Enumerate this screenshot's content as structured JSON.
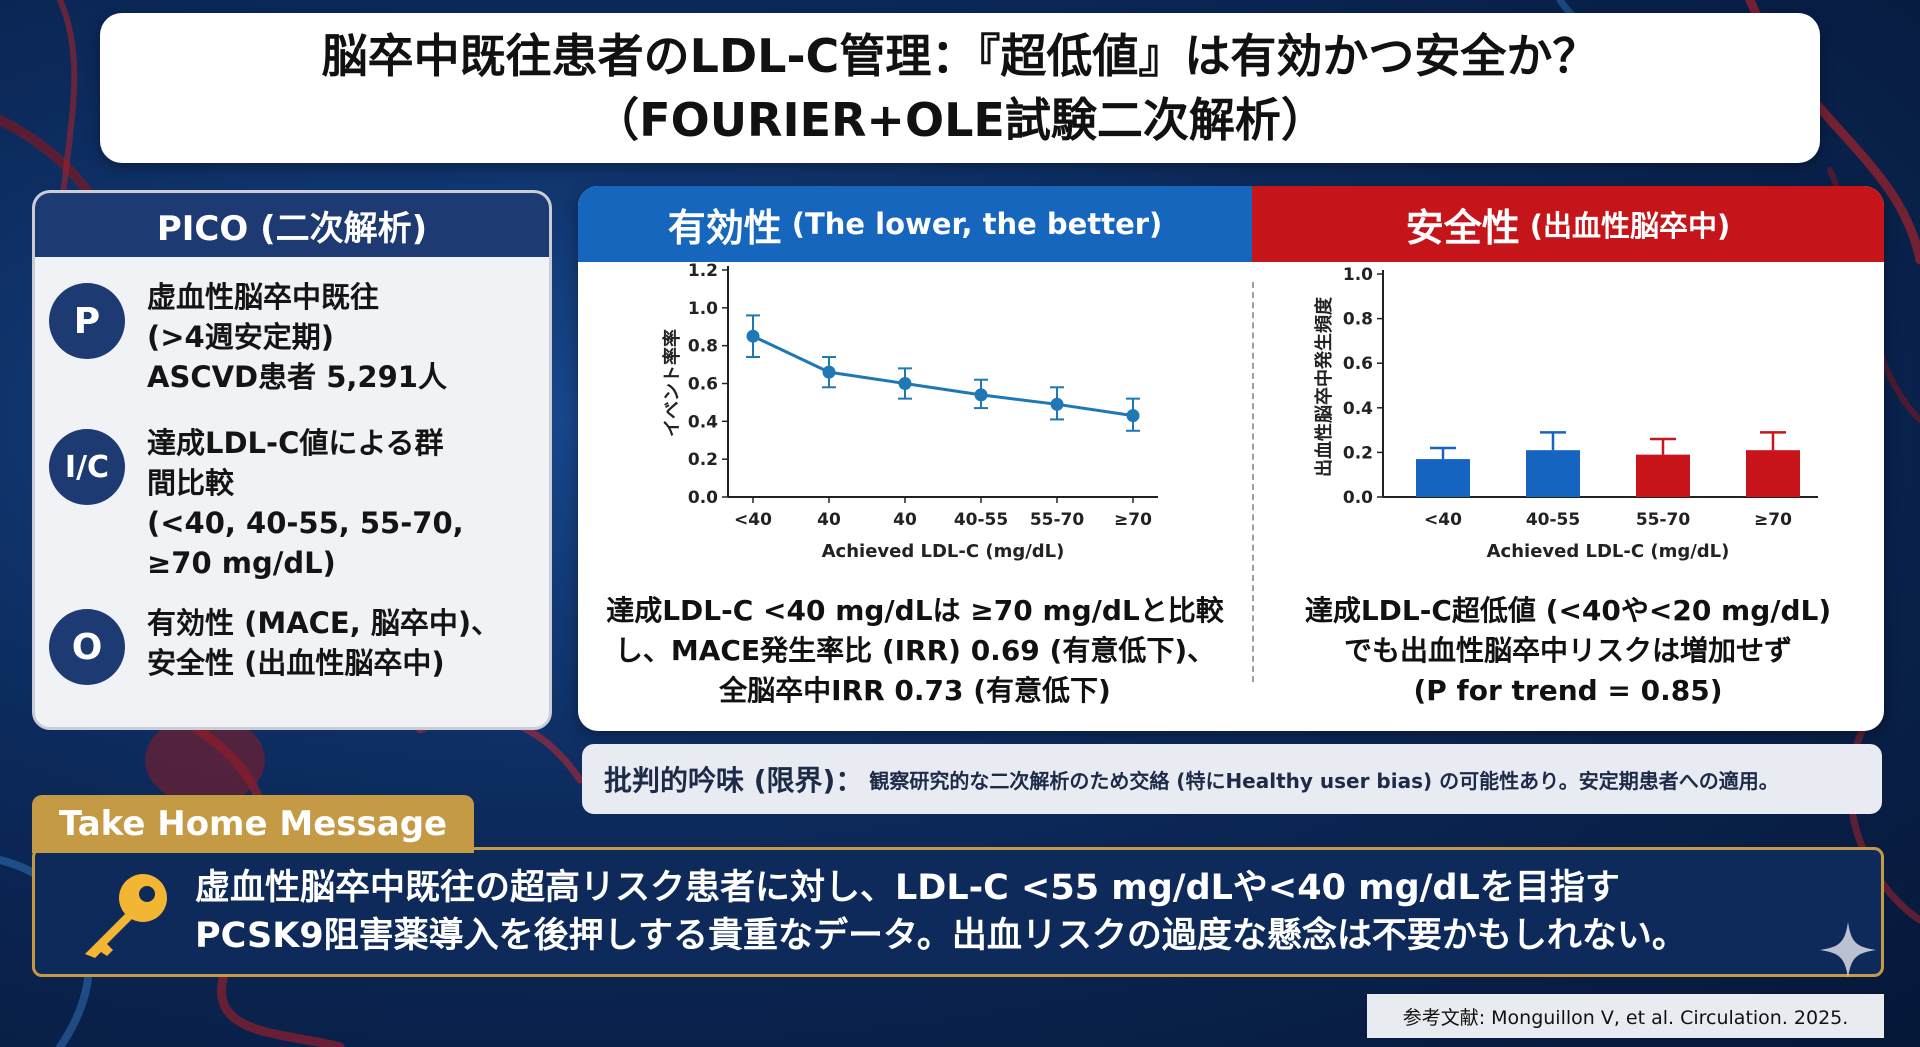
{
  "title": {
    "line1": "脳卒中既往患者のLDL-C管理：『超低値』は有効かつ安全か？",
    "line2": "（FOURIER+OLE試験二次解析）"
  },
  "pico": {
    "heading": "PICO (二次解析)",
    "items": [
      {
        "badge": "P",
        "lines": [
          "虚血性脳卒中既往",
          "(>4週安定期)",
          "ASCVD患者 5,291人"
        ]
      },
      {
        "badge": "I/C",
        "lines": [
          "達成LDL-C値による群",
          "間比較",
          "(<40, 40-55, 55-70,",
          "≥70 mg/dL)"
        ]
      },
      {
        "badge": "O",
        "lines": [
          "有効性 (MACE, 脳卒中)、",
          "安全性 (出血性脳卒中)"
        ]
      }
    ]
  },
  "efficacy": {
    "heading": "有効性",
    "subheading": "(The lower, the better)",
    "finding_lines": [
      "達成LDL-C <40 mg/dLは ≥70 mg/dLと比較",
      "し、MACE発生率比 (IRR) 0.69 (有意低下)、",
      "全脳卒中IRR 0.73 (有意低下)"
    ]
  },
  "safety": {
    "heading": "安全性",
    "subheading": "(出血性脳卒中)",
    "finding_lines": [
      "達成LDL-C超低値 (<40や<20 mg/dL)",
      "でも出血性脳卒中リスクは増加せず",
      "(P for trend = 0.85)"
    ]
  },
  "chart_data": [
    {
      "type": "line",
      "categories": [
        "<40",
        "40",
        "40",
        "40-55",
        "55-70",
        "≥70"
      ],
      "series": [
        {
          "values": [
            0.85,
            0.66,
            0.6,
            0.54,
            0.49,
            0.43
          ],
          "error_low": [
            0.74,
            0.58,
            0.52,
            0.47,
            0.41,
            0.35
          ],
          "error_high": [
            0.96,
            0.74,
            0.68,
            0.62,
            0.58,
            0.52
          ]
        }
      ],
      "xlabel": "Achieved LDL-C (mg/dL)",
      "ylabel": "イベント率率",
      "ylim": [
        0.0,
        1.2
      ],
      "yticks": [
        "0.0",
        "0.2",
        "0.4",
        "0.6",
        "0.8",
        "1.0",
        "1.2"
      ],
      "color": "#1f77b4"
    },
    {
      "type": "bar",
      "categories": [
        "<40",
        "40-55",
        "55-70",
        "≥70"
      ],
      "values": [
        0.17,
        0.21,
        0.19,
        0.21
      ],
      "error_high": [
        0.22,
        0.29,
        0.26,
        0.29
      ],
      "bar_colors": [
        "#1565c0",
        "#1565c0",
        "#c8141a",
        "#c8141a"
      ],
      "xlabel": "Achieved LDL-C (mg/dL)",
      "ylabel": "出血性脳卒中発生頻度",
      "ylim": [
        0.0,
        1.0
      ],
      "yticks": [
        "0.0",
        "0.2",
        "0.4",
        "0.6",
        "0.8",
        "1.0"
      ]
    }
  ],
  "critique": {
    "label": "批判的吟味 (限界)：",
    "text": "観察研究的な二次解析のため交絡 (特にHealthy user bias) の可能性あり。安定期患者への適用。"
  },
  "take_home": {
    "label": "Take Home Message",
    "icon": "key-icon",
    "lines": [
      "虚血性脳卒中既往の超高リスク患者に対し、LDL-C <55 mg/dLや<40 mg/dLを目指す",
      "PCSK9阻害薬導入を後押しする貴重なデータ。出血リスクの過度な懸念は不要かもしれない。"
    ]
  },
  "reference": "参考文献: Monguillon V, et al. Circulation. 2025.",
  "colors": {
    "navy": "#1e3a72",
    "blue": "#1566bc",
    "red": "#c5141a",
    "gold": "#c59a45"
  }
}
